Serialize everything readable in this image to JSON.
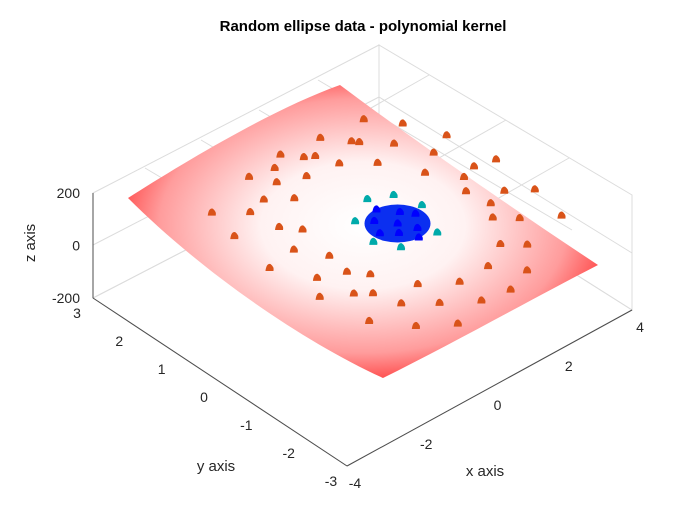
{
  "chart_data": {
    "type": "scatter",
    "title": "Random ellipse data - polynomial kernel",
    "xlabel": "x axis",
    "ylabel": "y axis",
    "zlabel": "z axis",
    "xlim": [
      -4,
      4
    ],
    "ylim": [
      -3,
      3
    ],
    "zlim": [
      -200,
      200
    ],
    "xticks": [
      -4,
      -2,
      0,
      2,
      4
    ],
    "yticks": [
      -3,
      -2,
      -1,
      0,
      1,
      2,
      3
    ],
    "zticks": [
      -200,
      0,
      200
    ],
    "grid": true,
    "surface": {
      "description_of_color": "red at edges fading to white at center",
      "edge_color": "#ff0000",
      "center_color": "#ffffff",
      "z_corners": {
        "x-4_y-3": -150,
        "x4_y-3": -80,
        "x-4_y3": 80,
        "x4_y3": 30
      }
    },
    "series": [
      {
        "color": "#d95319",
        "points": [
          [
            -1.9,
            1.2
          ],
          [
            -1.5,
            1.9
          ],
          [
            -1.2,
            2.5
          ],
          [
            -0.6,
            2.4
          ],
          [
            -0.2,
            2.6
          ],
          [
            0.3,
            2.2
          ],
          [
            0.8,
            2.5
          ],
          [
            -2.2,
            0.6
          ],
          [
            -2.5,
            -0.2
          ],
          [
            -2.3,
            -0.9
          ],
          [
            -1.8,
            -1.6
          ],
          [
            -1.2,
            -2.0
          ],
          [
            -0.5,
            -2.4
          ],
          [
            0.2,
            -2.5
          ],
          [
            0.9,
            -2.3
          ],
          [
            1.5,
            -1.8
          ],
          [
            2.0,
            -1.2
          ],
          [
            2.4,
            -0.5
          ],
          [
            2.5,
            0.3
          ],
          [
            2.2,
            1.0
          ],
          [
            1.8,
            1.6
          ],
          [
            1.3,
            2.0
          ],
          [
            -1.6,
            0.9
          ],
          [
            -1.0,
            1.6
          ],
          [
            -0.3,
            1.9
          ],
          [
            0.5,
            1.8
          ],
          [
            1.1,
            1.4
          ],
          [
            1.6,
            0.7
          ],
          [
            1.8,
            -0.1
          ],
          [
            1.6,
            -0.9
          ],
          [
            1.1,
            -1.5
          ],
          [
            0.4,
            -1.8
          ],
          [
            -0.4,
            -1.8
          ],
          [
            -1.1,
            -1.4
          ],
          [
            -1.6,
            -0.7
          ],
          [
            -1.8,
            0.1
          ],
          [
            -2.8,
            1.5
          ],
          [
            -2.6,
            2.2
          ],
          [
            -3.0,
            0.5
          ],
          [
            -2.9,
            -0.6
          ],
          [
            -2.7,
            -1.6
          ],
          [
            -2.1,
            -2.2
          ],
          [
            -1.4,
            -2.6
          ],
          [
            2.7,
            -1.6
          ],
          [
            2.9,
            -0.8
          ],
          [
            3.0,
            0.2
          ],
          [
            2.8,
            1.2
          ],
          [
            2.4,
            1.9
          ],
          [
            1.9,
            2.4
          ],
          [
            -2.0,
            1.8
          ],
          [
            -0.9,
            2.1
          ],
          [
            0.1,
            2.3
          ],
          [
            1.2,
            2.1
          ],
          [
            2.1,
            0.2
          ],
          [
            1.9,
            -0.6
          ],
          [
            -1.9,
            -0.4
          ],
          [
            -2.0,
            -1.1
          ]
        ]
      },
      {
        "color": "#0000ff",
        "points": [
          [
            0,
            0
          ],
          [
            0.3,
            0.2
          ],
          [
            -0.3,
            0.3
          ],
          [
            0.2,
            -0.3
          ],
          [
            -0.2,
            -0.2
          ],
          [
            0.5,
            0
          ],
          [
            -0.5,
            0
          ],
          [
            0,
            0.5
          ],
          [
            0,
            -0.5
          ]
        ]
      },
      {
        "color": "#00aaaa",
        "points": [
          [
            0.6,
            0.6
          ],
          [
            -0.6,
            0.5
          ],
          [
            0.4,
            -0.6
          ],
          [
            -0.5,
            -0.5
          ],
          [
            0.8,
            0.1
          ],
          [
            -0.8,
            -0.1
          ],
          [
            0.1,
            0.8
          ]
        ]
      }
    ]
  }
}
